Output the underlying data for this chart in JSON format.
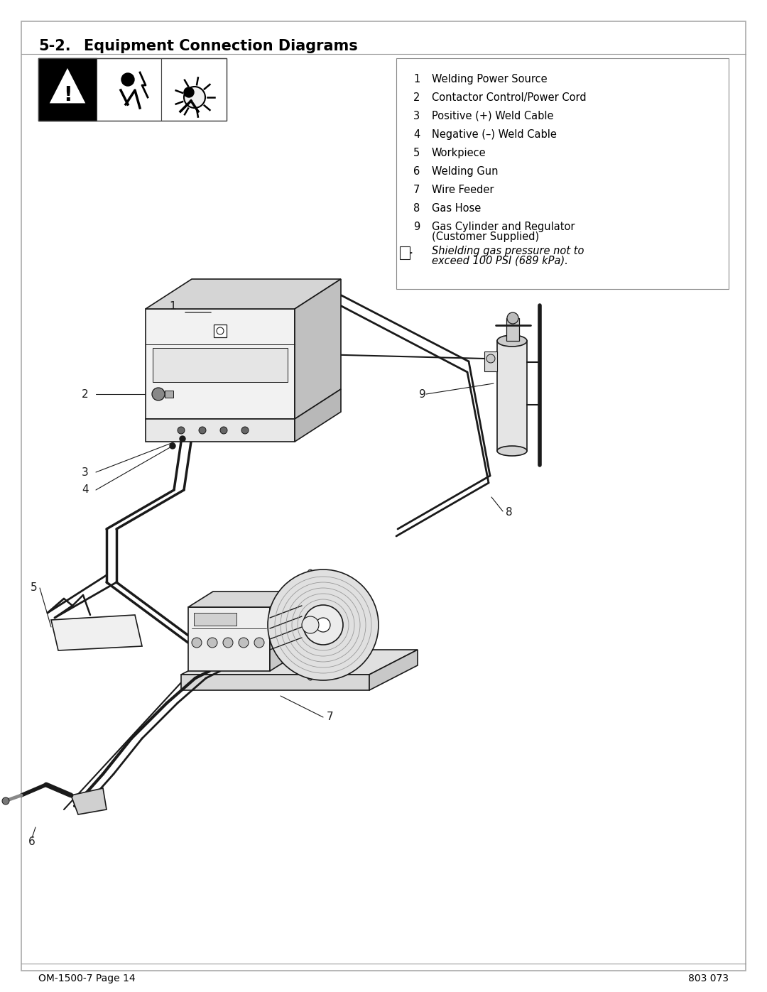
{
  "title_section": "5-2.",
  "title_rest": "Equipment Connection Diagrams",
  "legend_items": [
    [
      "1",
      "Welding Power Source"
    ],
    [
      "2",
      "Contactor Control/Power Cord"
    ],
    [
      "3",
      "Positive (+) Weld Cable"
    ],
    [
      "4",
      "Negative (–) Weld Cable"
    ],
    [
      "5",
      "Workpiece"
    ],
    [
      "6",
      "Welding Gun"
    ],
    [
      "7",
      "Wire Feeder"
    ],
    [
      "8",
      "Gas Hose"
    ],
    [
      "9",
      "Gas Cylinder and Regulator\n(Customer Supplied)"
    ]
  ],
  "note_text_line1": "Shielding gas pressure not to",
  "note_text_line2": "exceed 100 PSI (689 kPa).",
  "footer_left": "OM-1500-7 Page 14",
  "footer_right": "803 073",
  "bg_color": "#ffffff",
  "text_color": "#000000",
  "diagram_color": "#1a1a1a",
  "page_width": 10.8,
  "page_height": 13.97
}
